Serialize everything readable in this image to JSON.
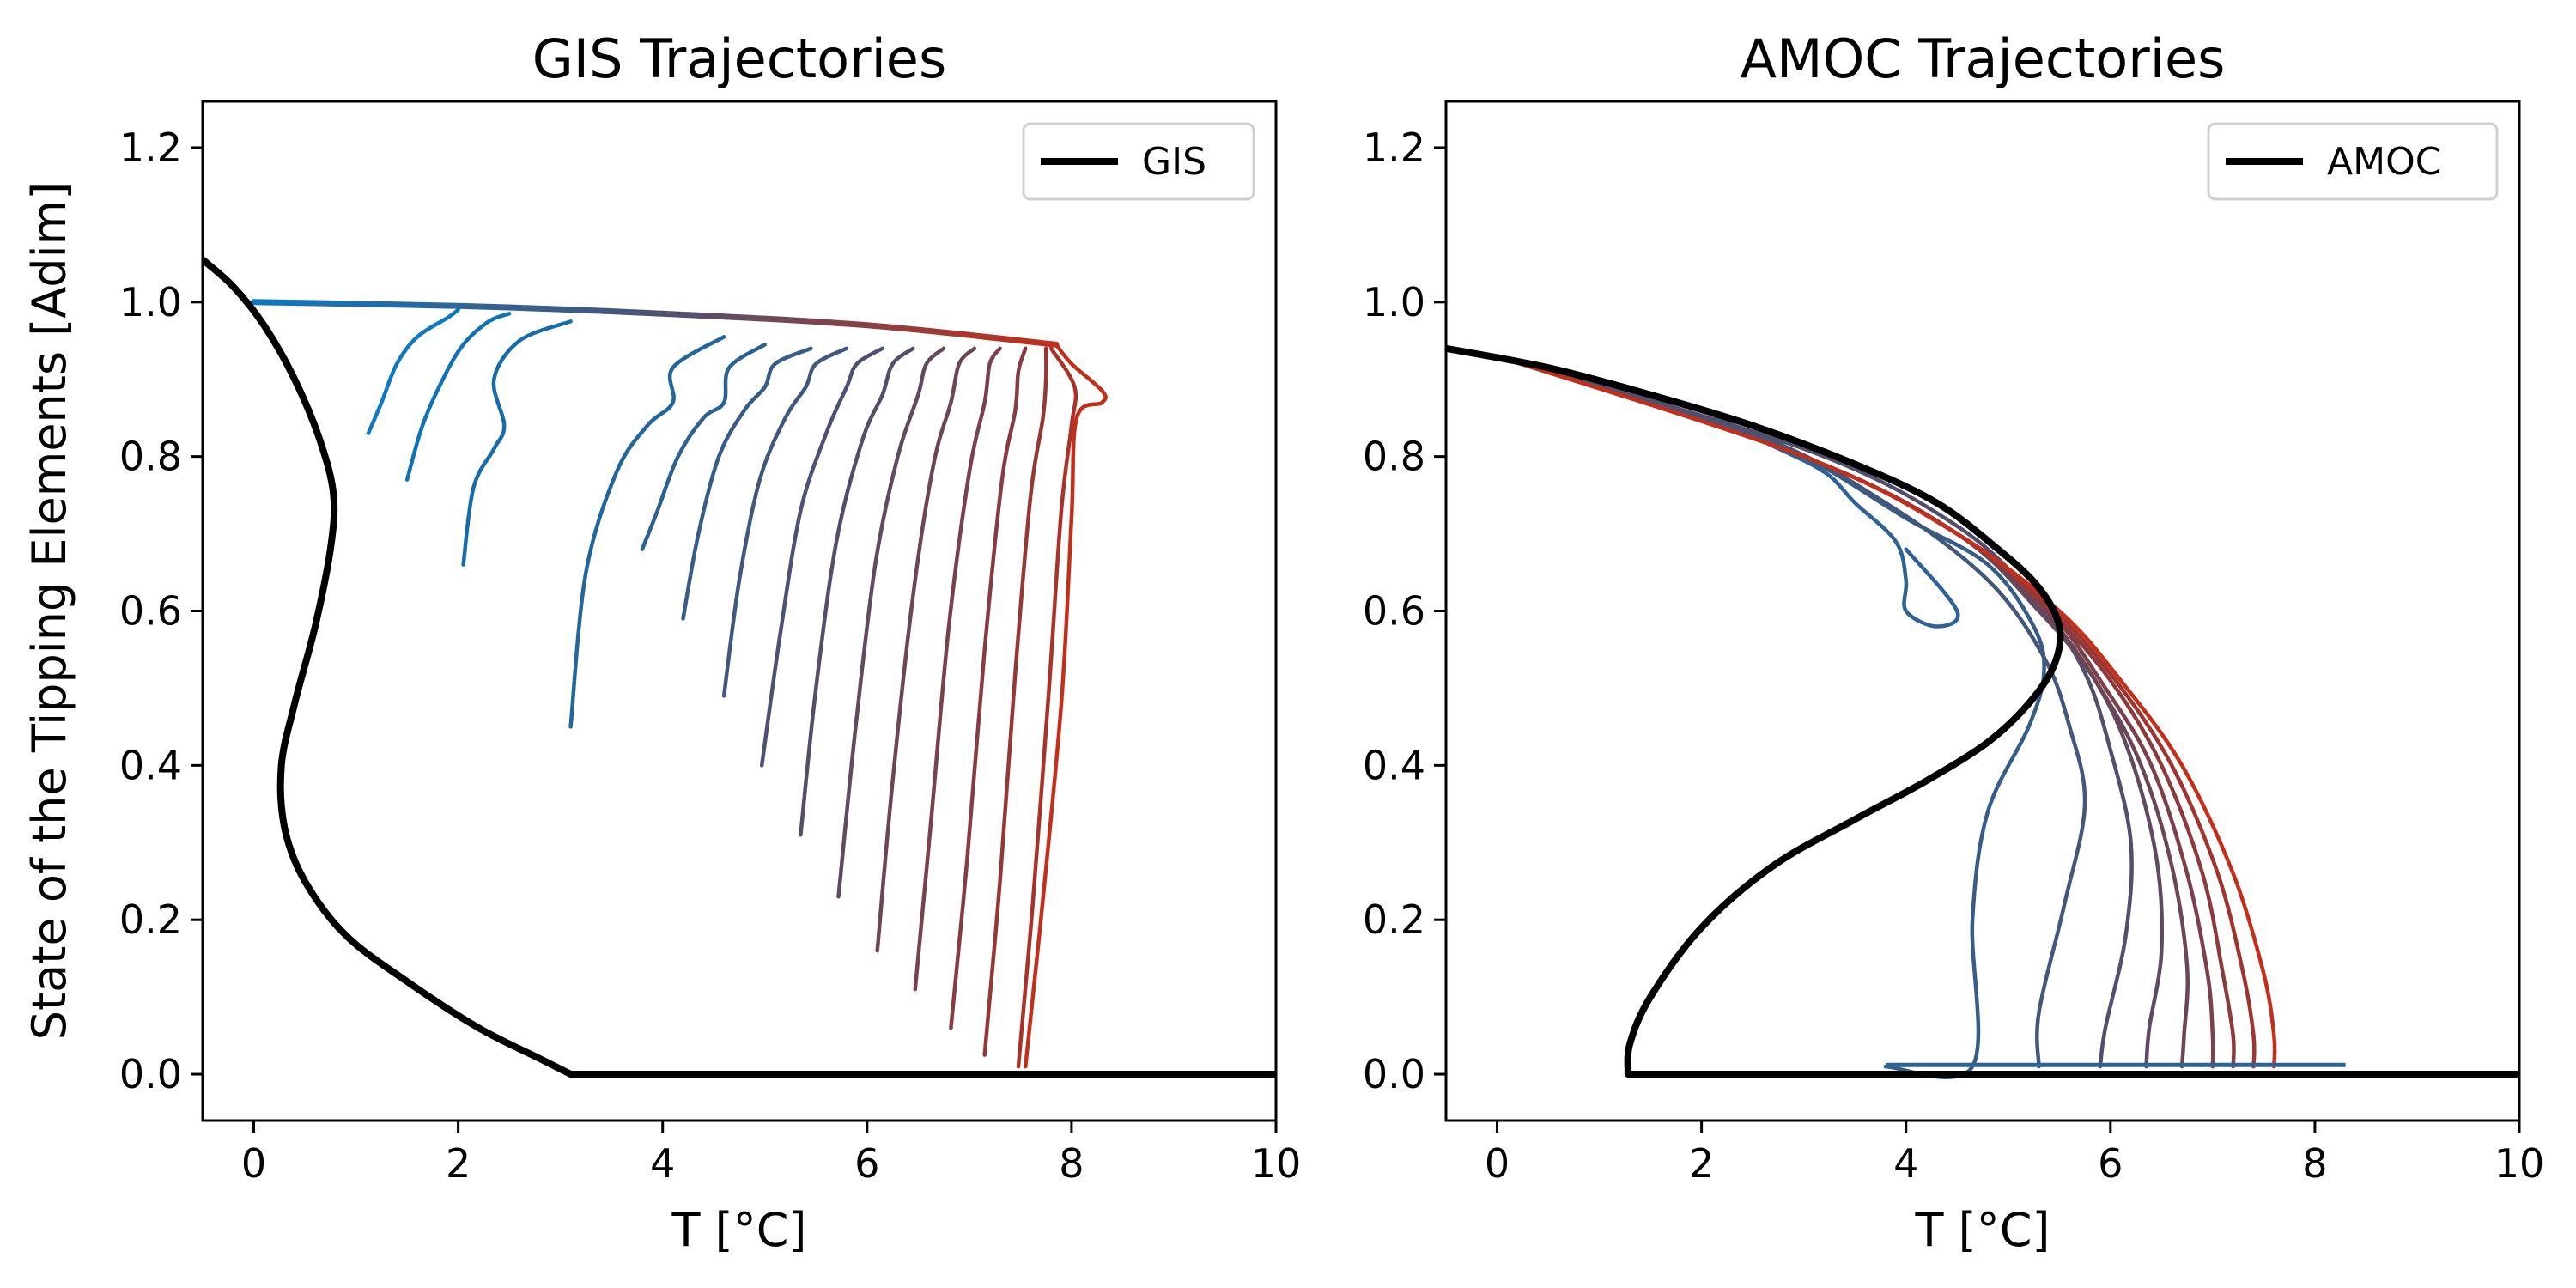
{
  "chart_data": [
    {
      "type": "line",
      "title": "GIS Trajectories",
      "xlabel": "T [°C]",
      "ylabel": "State of the Tipping Elements [Adim]",
      "xlim": [
        -0.5,
        10
      ],
      "ylim": [
        -0.06,
        1.26
      ],
      "xticks": [
        "0",
        "2",
        "4",
        "6",
        "8",
        "10"
      ],
      "yticks": [
        "0.0",
        "0.2",
        "0.4",
        "0.6",
        "0.8",
        "1.0",
        "1.2"
      ],
      "legend": {
        "position": "top-right",
        "entries": [
          "GIS"
        ]
      },
      "grid": false,
      "equilibrium": {
        "color": "#000000",
        "x": [
          -0.5,
          -0.2,
          0.1,
          0.4,
          0.65,
          0.78,
          0.75,
          0.6,
          0.4,
          0.27,
          0.3,
          0.5,
          0.9,
          1.5,
          2.2,
          2.8,
          3.1,
          10
        ],
        "y": [
          1.055,
          1.02,
          0.97,
          0.9,
          0.82,
          0.75,
          0.68,
          0.58,
          0.48,
          0.4,
          0.32,
          0.25,
          0.18,
          0.12,
          0.06,
          0.02,
          0.0,
          0.0
        ]
      },
      "trajectories": [
        {
          "color": "#0e78c0",
          "x": [
            1.12,
            1.25,
            1.4,
            1.6,
            1.9,
            2.0
          ],
          "y": [
            0.83,
            0.87,
            0.92,
            0.955,
            0.98,
            0.99
          ]
        },
        {
          "color": "#1072b4",
          "x": [
            1.5,
            1.65,
            1.85,
            2.05,
            2.3,
            2.5
          ],
          "y": [
            0.77,
            0.84,
            0.9,
            0.945,
            0.975,
            0.985
          ]
        },
        {
          "color": "#186ca8",
          "x": [
            2.05,
            2.15,
            2.35,
            2.45,
            2.35,
            2.6,
            3.1
          ],
          "y": [
            0.66,
            0.76,
            0.81,
            0.84,
            0.9,
            0.95,
            0.975
          ]
        },
        {
          "color": "#23669a",
          "x": [
            3.1,
            3.25,
            3.55,
            3.85,
            4.1,
            4.1,
            4.6
          ],
          "y": [
            0.45,
            0.65,
            0.78,
            0.84,
            0.87,
            0.915,
            0.955
          ]
        },
        {
          "color": "#2d6190",
          "x": [
            3.8,
            3.95,
            4.15,
            4.4,
            4.6,
            4.65,
            5.0
          ],
          "y": [
            0.68,
            0.73,
            0.8,
            0.85,
            0.87,
            0.915,
            0.945
          ]
        },
        {
          "color": "#375c85",
          "x": [
            4.2,
            4.35,
            4.55,
            4.8,
            5.0,
            5.1,
            5.45
          ],
          "y": [
            0.59,
            0.7,
            0.8,
            0.86,
            0.89,
            0.92,
            0.94
          ]
        },
        {
          "color": "#41577b",
          "x": [
            4.6,
            4.75,
            4.95,
            5.2,
            5.4,
            5.5,
            5.8
          ],
          "y": [
            0.49,
            0.64,
            0.77,
            0.85,
            0.89,
            0.92,
            0.94
          ]
        },
        {
          "color": "#4c5372",
          "x": [
            4.97,
            5.15,
            5.35,
            5.6,
            5.8,
            5.9,
            6.15
          ],
          "y": [
            0.4,
            0.57,
            0.73,
            0.83,
            0.89,
            0.92,
            0.94
          ]
        },
        {
          "color": "#564e69",
          "x": [
            5.35,
            5.5,
            5.7,
            5.95,
            6.15,
            6.25,
            6.45
          ],
          "y": [
            0.31,
            0.5,
            0.69,
            0.82,
            0.88,
            0.92,
            0.94
          ]
        },
        {
          "color": "#614a60",
          "x": [
            5.72,
            5.88,
            6.08,
            6.3,
            6.5,
            6.58,
            6.75
          ],
          "y": [
            0.23,
            0.44,
            0.66,
            0.8,
            0.88,
            0.92,
            0.94
          ]
        },
        {
          "color": "#6c4656",
          "x": [
            6.1,
            6.25,
            6.45,
            6.65,
            6.82,
            6.9,
            7.05
          ],
          "y": [
            0.16,
            0.38,
            0.62,
            0.79,
            0.87,
            0.92,
            0.94
          ]
        },
        {
          "color": "#78414c",
          "x": [
            6.47,
            6.62,
            6.8,
            7.0,
            7.15,
            7.2,
            7.3
          ],
          "y": [
            0.11,
            0.32,
            0.58,
            0.78,
            0.87,
            0.92,
            0.94
          ]
        },
        {
          "color": "#853c42",
          "x": [
            6.82,
            6.98,
            7.15,
            7.32,
            7.45,
            7.48,
            7.55
          ],
          "y": [
            0.06,
            0.28,
            0.55,
            0.77,
            0.86,
            0.91,
            0.94
          ]
        },
        {
          "color": "#943836",
          "x": [
            7.15,
            7.3,
            7.45,
            7.6,
            7.72,
            7.75,
            7.75
          ],
          "y": [
            0.025,
            0.25,
            0.52,
            0.75,
            0.85,
            0.9,
            0.94
          ]
        },
        {
          "color": "#a9332a",
          "x": [
            7.48,
            7.62,
            7.78,
            7.9,
            8.0,
            8.03,
            7.8
          ],
          "y": [
            0.01,
            0.22,
            0.5,
            0.73,
            0.84,
            0.89,
            0.94
          ]
        },
        {
          "color": "#c2301c",
          "x": [
            7.55,
            7.7,
            7.9,
            8.0,
            8.05,
            8.3,
            8.3,
            8.0,
            7.85
          ],
          "y": [
            0.01,
            0.2,
            0.48,
            0.72,
            0.85,
            0.87,
            0.885,
            0.92,
            0.945
          ]
        }
      ],
      "plateau": {
        "x": [
          0.0,
          2.0,
          4.0,
          6.0,
          7.85
        ],
        "y": [
          1.0,
          0.995,
          0.985,
          0.97,
          0.945
        ]
      }
    },
    {
      "type": "line",
      "title": "AMOC Trajectories",
      "xlabel": "T [°C]",
      "ylabel": "",
      "xlim": [
        -0.5,
        10
      ],
      "ylim": [
        -0.06,
        1.26
      ],
      "xticks": [
        "0",
        "2",
        "4",
        "6",
        "8",
        "10"
      ],
      "yticks": [
        "0.0",
        "0.2",
        "0.4",
        "0.6",
        "0.8",
        "1.0",
        "1.2"
      ],
      "legend": {
        "position": "top-right",
        "entries": [
          "AMOC"
        ]
      },
      "grid": false,
      "equilibrium": {
        "color": "#000000",
        "x": [
          -0.5,
          0.5,
          1.5,
          2.5,
          3.5,
          4.3,
          4.9,
          5.3,
          5.5,
          5.45,
          5.2,
          4.8,
          4.2,
          3.5,
          2.7,
          2.0,
          1.5,
          1.3,
          1.28,
          10
        ],
        "y": [
          0.94,
          0.915,
          0.88,
          0.84,
          0.79,
          0.74,
          0.68,
          0.63,
          0.58,
          0.53,
          0.48,
          0.43,
          0.38,
          0.33,
          0.27,
          0.19,
          0.1,
          0.04,
          0.0,
          0.0
        ]
      },
      "trajectories": [
        {
          "color": "#1a6aa4",
          "x": [
            0.0,
            1.0,
            1.8,
            2.0
          ],
          "y": [
            0.93,
            0.9,
            0.86,
            0.85
          ]
        },
        {
          "color": "#2e6293",
          "x": [
            0.0,
            1.0,
            2.0,
            2.6,
            3.2,
            3.5,
            3.9,
            4.0,
            4.0,
            4.3,
            4.5,
            4.0
          ],
          "y": [
            0.93,
            0.9,
            0.86,
            0.82,
            0.78,
            0.74,
            0.69,
            0.64,
            0.6,
            0.58,
            0.6,
            0.68
          ]
        },
        {
          "color": "#375c85",
          "x": [
            3.8,
            4.65,
            4.65,
            4.8,
            5.2,
            5.35,
            5.25,
            4.8,
            4.0,
            3.0,
            2.0,
            0.0
          ],
          "y": [
            0.01,
            0.01,
            0.2,
            0.34,
            0.45,
            0.52,
            0.58,
            0.66,
            0.72,
            0.8,
            0.85,
            0.93
          ]
        },
        {
          "color": "#43577a",
          "x": [
            5.3,
            5.3,
            5.55,
            5.75,
            5.6,
            5.35,
            4.8,
            3.8,
            2.5,
            0.0
          ],
          "y": [
            0.01,
            0.08,
            0.22,
            0.35,
            0.45,
            0.54,
            0.64,
            0.74,
            0.83,
            0.93
          ]
        },
        {
          "color": "#514f6c",
          "x": [
            5.9,
            5.95,
            6.15,
            6.2,
            6.0,
            5.75,
            5.3,
            4.5,
            3.0,
            0.0
          ],
          "y": [
            0.01,
            0.06,
            0.18,
            0.3,
            0.42,
            0.52,
            0.61,
            0.71,
            0.81,
            0.93
          ]
        },
        {
          "color": "#5f4a62",
          "x": [
            6.35,
            6.38,
            6.5,
            6.45,
            6.2,
            5.85,
            5.3,
            4.5,
            3.0,
            0.0
          ],
          "y": [
            0.01,
            0.06,
            0.16,
            0.28,
            0.41,
            0.51,
            0.6,
            0.7,
            0.8,
            0.93
          ]
        },
        {
          "color": "#6c4656",
          "x": [
            6.7,
            6.72,
            6.75,
            6.6,
            6.3,
            5.9,
            5.35,
            4.5,
            3.0,
            0.0
          ],
          "y": [
            0.01,
            0.05,
            0.14,
            0.27,
            0.4,
            0.5,
            0.6,
            0.7,
            0.8,
            0.93
          ]
        },
        {
          "color": "#7b404a",
          "x": [
            7.0,
            7.0,
            6.95,
            6.75,
            6.4,
            5.95,
            5.4,
            4.5,
            3.0,
            0.0
          ],
          "y": [
            0.01,
            0.05,
            0.13,
            0.26,
            0.4,
            0.5,
            0.6,
            0.7,
            0.8,
            0.93
          ]
        },
        {
          "color": "#8b3a3e",
          "x": [
            7.2,
            7.2,
            7.1,
            6.9,
            6.5,
            6.0,
            5.4,
            4.5,
            3.0,
            0.0
          ],
          "y": [
            0.01,
            0.05,
            0.13,
            0.26,
            0.4,
            0.51,
            0.6,
            0.7,
            0.8,
            0.93
          ]
        },
        {
          "color": "#9e3530",
          "x": [
            7.4,
            7.4,
            7.3,
            7.05,
            6.6,
            6.05,
            5.45,
            4.5,
            3.0,
            0.0
          ],
          "y": [
            0.01,
            0.05,
            0.13,
            0.26,
            0.4,
            0.51,
            0.6,
            0.7,
            0.8,
            0.93
          ]
        },
        {
          "color": "#c2301c",
          "x": [
            7.6,
            7.6,
            7.5,
            7.2,
            6.7,
            6.1,
            5.5,
            4.5,
            3.0,
            0.0
          ],
          "y": [
            0.01,
            0.05,
            0.13,
            0.26,
            0.4,
            0.51,
            0.6,
            0.7,
            0.8,
            0.93
          ]
        }
      ],
      "baseline_segment": {
        "color": "#2e6293",
        "x": [
          3.8,
          8.3
        ],
        "y": [
          0.012,
          0.012
        ]
      }
    }
  ]
}
